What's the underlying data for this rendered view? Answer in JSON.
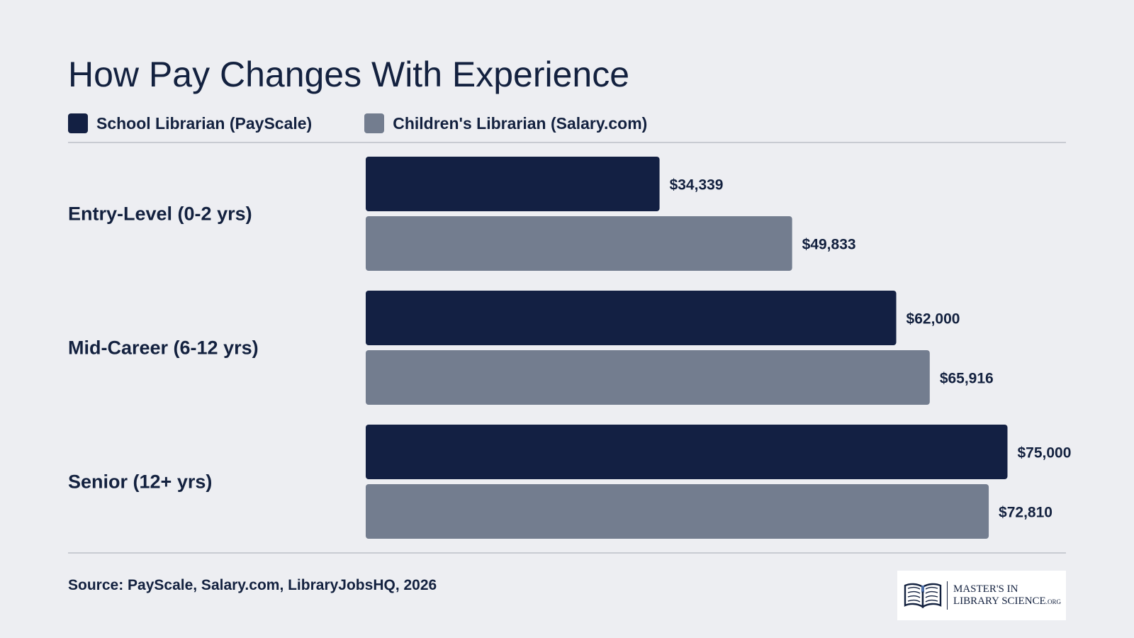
{
  "title": "How Pay Changes With Experience",
  "legend": [
    {
      "label": "School Librarian (PayScale)",
      "color": "#132043"
    },
    {
      "label": "Children's Librarian (Salary.com)",
      "color": "#737d8f"
    }
  ],
  "source": "Source: PayScale, Salary.com, LibraryJobsHQ, 2026",
  "logo": {
    "line1": "MASTER'S IN",
    "line2": "LIBRARY SCIENCE",
    "suffix": ".ORG",
    "icon": "open-book-icon"
  },
  "chart_data": {
    "type": "bar",
    "orientation": "horizontal",
    "title": "How Pay Changes With Experience",
    "categories": [
      "Entry-Level (0-2 yrs)",
      "Mid-Career (6-12 yrs)",
      "Senior (12+ yrs)"
    ],
    "series": [
      {
        "name": "School Librarian (PayScale)",
        "color": "#132043",
        "values": [
          34339,
          62000,
          75000
        ],
        "labels": [
          "$34,339",
          "$62,000",
          "$75,000"
        ]
      },
      {
        "name": "Children's Librarian (Salary.com)",
        "color": "#737d8f",
        "values": [
          49833,
          65916,
          72810
        ],
        "labels": [
          "$49,833",
          "$65,916",
          "$72,810"
        ]
      }
    ],
    "xlim": [
      0,
      82000
    ],
    "grid": false,
    "legend_position": "top-left"
  }
}
